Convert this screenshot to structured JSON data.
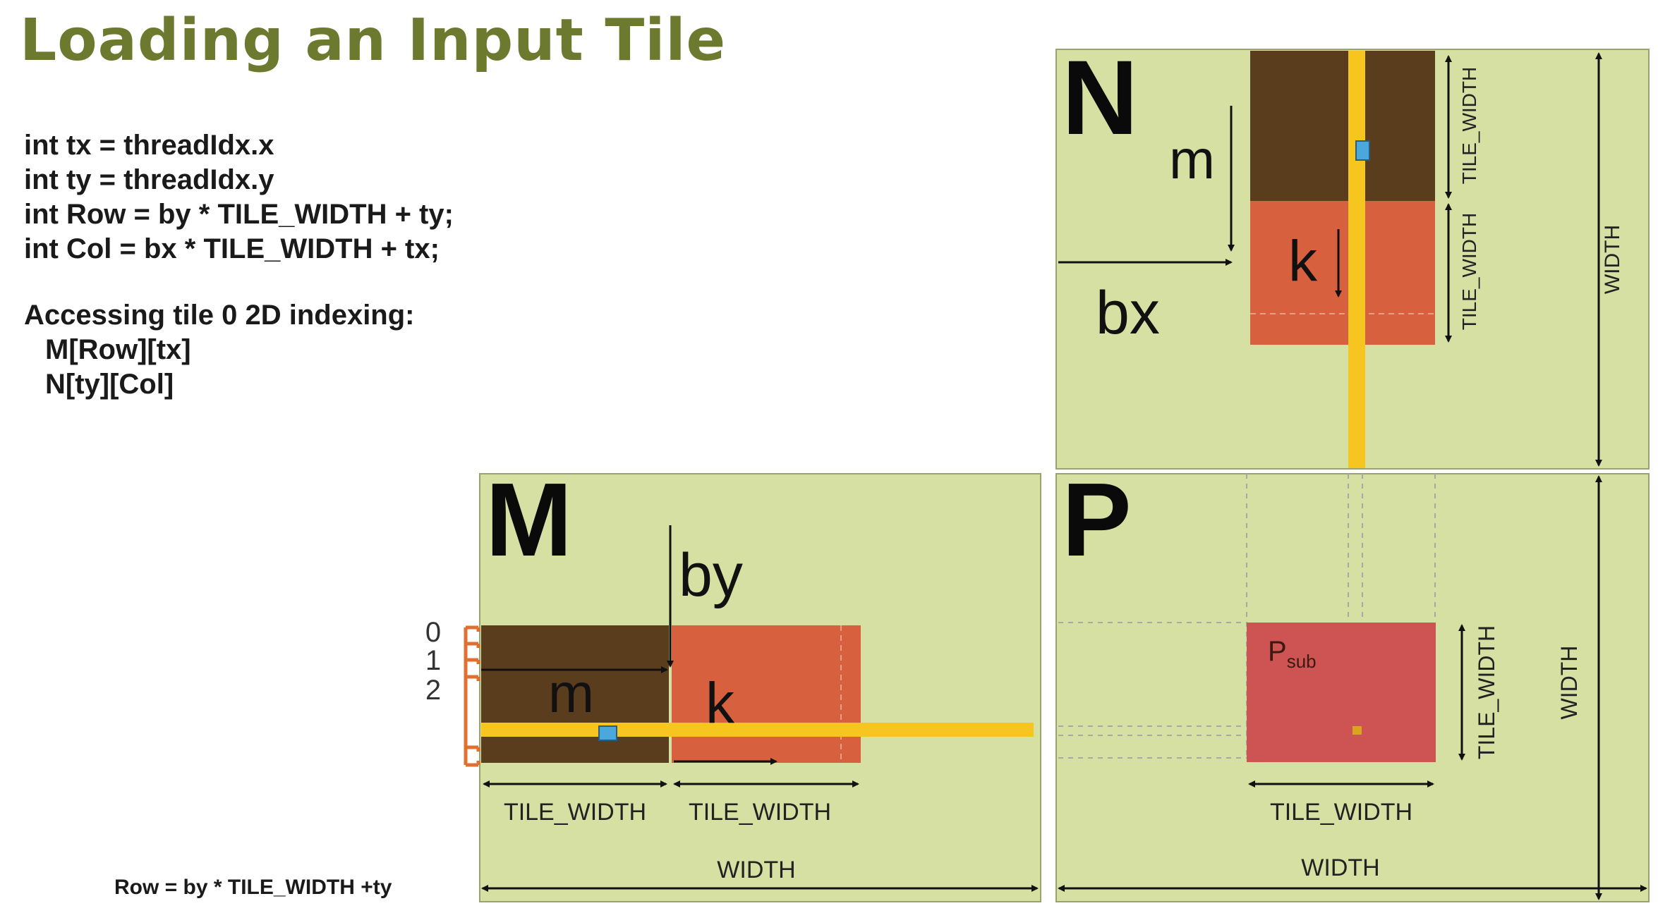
{
  "title": "Loading an Input Tile",
  "code": {
    "lines": [
      "int tx = threadIdx.x",
      "int ty = threadIdx.y",
      "int Row = by * TILE_WIDTH + ty;",
      "int Col = bx * TILE_WIDTH + tx;"
    ],
    "access_heading": "Accessing tile 0 2D indexing:",
    "access_lines": [
      "M[Row][tx]",
      "N[ty][Col]"
    ]
  },
  "row_formula": "Row = by * TILE_WIDTH +ty",
  "matrices": {
    "n": {
      "name": "N",
      "m_label": "m",
      "k_label": "k",
      "bx_label": "bx",
      "tile_width_top": "TILE_WIDTH",
      "tile_width_bottom": "TILE_WIDTH",
      "width_label": "WIDTH"
    },
    "m": {
      "name": "M",
      "by_label": "by",
      "m_label": "m",
      "k_label": "k",
      "row_indices": [
        "0",
        "1",
        "2"
      ],
      "tile_width_left": "TILE_WIDTH",
      "tile_width_right": "TILE_WIDTH",
      "width_label": "WIDTH"
    },
    "p": {
      "name": "P",
      "sub_base": "P",
      "sub_script": "sub",
      "tile_width_bottom": "TILE_WIDTH",
      "tile_width_side": "TILE_WIDTH",
      "width_bottom": "WIDTH",
      "width_side": "WIDTH"
    }
  },
  "colors": {
    "title": "#6b7a2e",
    "matrix_bg": "#d6e0a3",
    "tile_dark": "#5a3d1c",
    "tile_orange": "#d7603f",
    "tile_red": "#cd5453",
    "highlight": "#f6c520",
    "cell": "#4aa8dc",
    "bracket": "#e07030"
  }
}
